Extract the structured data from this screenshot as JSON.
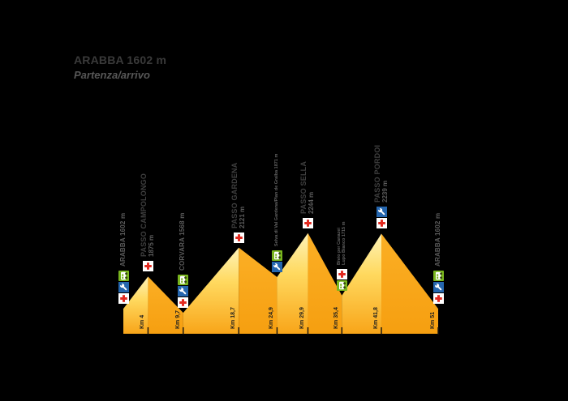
{
  "title": {
    "name": "ARABBA 1602 m",
    "subtitle": "Partenza/arrivo"
  },
  "colors": {
    "background": "#000000",
    "title_text": "#3a3a3a",
    "subtitle_text": "#575757",
    "pass_label": "#404040",
    "pass_elev": "#5c5c5c",
    "town_label": "#5c5c5c",
    "minor_label": "#636363",
    "km_label": "#1e1e1e",
    "tick": "#111111",
    "ascent_top": "#fdf3b8",
    "ascent_mid": "#ffd95f",
    "ascent_bottom": "#f8a519",
    "descent_top": "#fbaf25",
    "descent_bottom": "#f69f10",
    "medical_bg": "#ffffff",
    "medical_cross": "#e22a20",
    "mechanic_bg": "#2566ae",
    "mechanic_glyph": "#ffffff",
    "refreshment_bg": "#79b51e",
    "refreshment_glyph": "#ffffff",
    "refreshment_dark": "#32410f"
  },
  "icon_legend": {
    "medical": "medical-aid-red-cross",
    "mechanic": "mechanical-assistance-wrench",
    "refreshment": "refreshment-shuttle-bus"
  },
  "chart_data": {
    "type": "area",
    "title": "Sellaronda elevation profile (Arabba start/finish)",
    "x_unit": "km",
    "y_unit": "m",
    "xlim": [
      0,
      51
    ],
    "ylim": [
      1390,
      2300
    ],
    "total_km_label": "Km 51",
    "points": [
      {
        "km": 0,
        "elev_m": 1602,
        "km_label": "",
        "label_style": "town",
        "label_lines": [
          "ARABBA 1602 m"
        ],
        "icons_bottom_to_top": [
          "medical",
          "mechanic",
          "refreshment"
        ]
      },
      {
        "km": 4,
        "elev_m": 1875,
        "km_label": "Km 4",
        "label_style": "pass",
        "label_lines": [
          "PASSO CAMPOLONGO",
          "1875 m"
        ],
        "icons_bottom_to_top": [
          "medical"
        ]
      },
      {
        "km": 9.7,
        "elev_m": 1568,
        "km_label": "Km 9,7",
        "label_style": "town",
        "label_lines": [
          "CORVARA 1568 m"
        ],
        "icons_bottom_to_top": [
          "medical",
          "mechanic",
          "refreshment"
        ]
      },
      {
        "km": 18.7,
        "elev_m": 2121,
        "km_label": "Km 18,7",
        "label_style": "pass",
        "label_lines": [
          "PASSO GARDENA",
          "2121 m"
        ],
        "icons_bottom_to_top": [
          "medical"
        ]
      },
      {
        "km": 24.9,
        "elev_m": 1871,
        "km_label": "Km 24,9",
        "label_style": "minor",
        "label_lines": [
          "Selva di Val Gardena/Plan de Gralba 1871 m"
        ],
        "icons_bottom_to_top": [
          "mechanic",
          "refreshment"
        ]
      },
      {
        "km": 29.9,
        "elev_m": 2244,
        "km_label": "Km 29,9",
        "label_style": "pass",
        "label_lines": [
          "PASSO SELLA",
          "2244 m"
        ],
        "icons_bottom_to_top": [
          "medical"
        ]
      },
      {
        "km": 35.4,
        "elev_m": 1715,
        "km_label": "Km 35,4",
        "label_style": "minor",
        "label_lines": [
          "Bivio per Canazei",
          "Lupo Bianco 1715 m"
        ],
        "icons_bottom_to_top": [
          "refreshment",
          "medical"
        ]
      },
      {
        "km": 41.8,
        "elev_m": 2239,
        "km_label": "Km 41,8",
        "label_style": "pass",
        "label_lines": [
          "PASSO PORDOI",
          "2239 m"
        ],
        "icons_bottom_to_top": [
          "medical",
          "mechanic"
        ]
      },
      {
        "km": 51,
        "elev_m": 1602,
        "km_label": "Km 51",
        "label_style": "town",
        "label_lines": [
          "ARABBA 1602 m"
        ],
        "icons_bottom_to_top": [
          "medical",
          "mechanic",
          "refreshment"
        ]
      }
    ]
  }
}
